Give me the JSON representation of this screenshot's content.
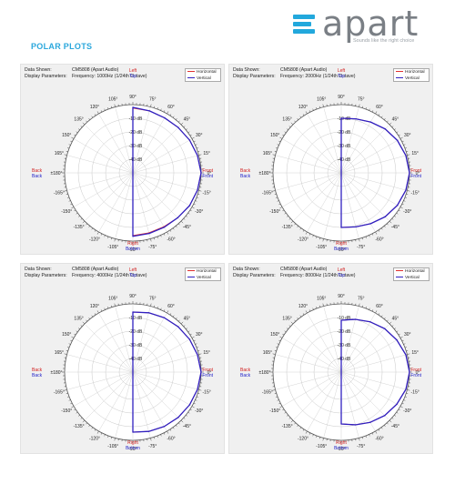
{
  "brand": {
    "name": "apart",
    "tagline": "Sounds like the right choice",
    "accent": "#22a8dc"
  },
  "section_title": "POLAR PLOTS",
  "colors": {
    "horizontal": "#e03030",
    "vertical": "#3020c0"
  },
  "plot_labels": {
    "data_shown_key": "Data Shown:",
    "display_params_key": "Display Parameters:",
    "left": "Left",
    "top": "Top",
    "right": "Right",
    "bottom": "Bottom",
    "back_h": "Back",
    "back_v": "Back",
    "front_h": "Front",
    "front_v": "Front"
  },
  "angle_labels": [
    {
      "a": 90,
      "t": "90°"
    },
    {
      "a": 75,
      "t": "75°"
    },
    {
      "a": 60,
      "t": "60°"
    },
    {
      "a": 45,
      "t": "45°"
    },
    {
      "a": 30,
      "t": "30°"
    },
    {
      "a": 15,
      "t": "15°"
    },
    {
      "a": 0,
      "t": "0°"
    },
    {
      "a": -15,
      "t": "-15°"
    },
    {
      "a": -30,
      "t": "-30°"
    },
    {
      "a": -45,
      "t": "-45°"
    },
    {
      "a": -60,
      "t": "-60°"
    },
    {
      "a": -75,
      "t": "-75°"
    },
    {
      "a": -90,
      "t": "-90°"
    },
    {
      "a": -105,
      "t": "-105°"
    },
    {
      "a": -120,
      "t": "-120°"
    },
    {
      "a": -135,
      "t": "-135°"
    },
    {
      "a": -150,
      "t": "-150°"
    },
    {
      "a": -165,
      "t": "-165°"
    },
    {
      "a": 180,
      "t": "±180°"
    },
    {
      "a": 165,
      "t": "165°"
    },
    {
      "a": 150,
      "t": "150°"
    },
    {
      "a": 135,
      "t": "135°"
    },
    {
      "a": 120,
      "t": "120°"
    },
    {
      "a": 105,
      "t": "105°"
    }
  ],
  "chart_data": [
    {
      "type": "polar",
      "data_shown": "CM5808 (Apart Audio)",
      "display_parameters": "Frequency: 1000Hz (1/24th Octave)",
      "legend": [
        "Horizontal",
        "Vertical"
      ],
      "rings_db": [
        "-10 dB",
        "-20 dB",
        "-30 dB",
        "-40 dB"
      ],
      "r_range_db": [
        -50,
        0
      ],
      "angles_deg": [
        -90,
        -75,
        -60,
        -45,
        -30,
        -15,
        0,
        15,
        30,
        45,
        60,
        75,
        90
      ],
      "series": [
        {
          "name": "Horizontal",
          "values_db": [
            -4,
            -4.5,
            -4.5,
            -3.5,
            -2,
            -1,
            0,
            -1,
            -2,
            -3,
            -3.5,
            -3,
            -2.5
          ]
        },
        {
          "name": "Vertical",
          "values_db": [
            -3.5,
            -4,
            -4,
            -3.5,
            -2,
            -1,
            0,
            -1,
            -2,
            -3,
            -3.5,
            -3,
            -2
          ]
        }
      ]
    },
    {
      "type": "polar",
      "data_shown": "CM5808 (Apart Audio)",
      "display_parameters": "Frequency: 2000Hz (1/24th Octave)",
      "legend": [
        "Horizontal",
        "Vertical"
      ],
      "rings_db": [
        "-10 dB",
        "-20 dB",
        "-30 dB",
        "-40 dB"
      ],
      "r_range_db": [
        -50,
        0
      ],
      "angles_deg": [
        -90,
        -75,
        -60,
        -45,
        -30,
        -15,
        0,
        15,
        30,
        45,
        60,
        75,
        90
      ],
      "series": [
        {
          "name": "Horizontal",
          "values_db": [
            -10,
            -9,
            -7,
            -4.5,
            -2.5,
            -1,
            0,
            -1,
            -2.5,
            -4.5,
            -7,
            -9,
            -10
          ]
        },
        {
          "name": "Vertical",
          "values_db": [
            -10,
            -9,
            -7,
            -4.5,
            -2.5,
            -1,
            0,
            -1,
            -2.5,
            -4.5,
            -7,
            -9,
            -10
          ]
        }
      ]
    },
    {
      "type": "polar",
      "data_shown": "CM5808 (Apart Audio)",
      "display_parameters": "Frequency: 4000Hz (1/24th Octave)",
      "legend": [
        "Horizontal",
        "Vertical"
      ],
      "rings_db": [
        "-10 dB",
        "-20 dB",
        "-30 dB",
        "-40 dB"
      ],
      "r_range_db": [
        -50,
        0
      ],
      "angles_deg": [
        -90,
        -75,
        -60,
        -45,
        -30,
        -15,
        0,
        15,
        30,
        45,
        60,
        75,
        90
      ],
      "series": [
        {
          "name": "Horizontal",
          "values_db": [
            -6,
            -5,
            -4,
            -3,
            -2,
            -1,
            0,
            -1,
            -2,
            -3,
            -4,
            -5,
            -6
          ]
        },
        {
          "name": "Vertical",
          "values_db": [
            -6,
            -5,
            -4,
            -3,
            -2,
            -1,
            0,
            -1,
            -2,
            -3,
            -4,
            -5,
            -6
          ]
        }
      ]
    },
    {
      "type": "polar",
      "data_shown": "CM5808 (Apart Audio)",
      "display_parameters": "Frequency: 8000Hz (1/24th Octave)",
      "legend": [
        "Horizontal",
        "Vertical"
      ],
      "rings_db": [
        "-10 dB",
        "-20 dB",
        "-30 dB",
        "-40 dB"
      ],
      "r_range_db": [
        -50,
        0
      ],
      "angles_deg": [
        -90,
        -75,
        -60,
        -45,
        -30,
        -15,
        0,
        15,
        30,
        45,
        60,
        75,
        90
      ],
      "series": [
        {
          "name": "Horizontal",
          "values_db": [
            -12,
            -10,
            -7.5,
            -5,
            -3,
            -1,
            0,
            -1,
            -3,
            -5,
            -7.5,
            -10,
            -12
          ]
        },
        {
          "name": "Vertical",
          "values_db": [
            -12,
            -10,
            -7.5,
            -5,
            -3,
            -1,
            0,
            -1,
            -3,
            -5,
            -7.5,
            -10,
            -12
          ]
        }
      ]
    }
  ]
}
